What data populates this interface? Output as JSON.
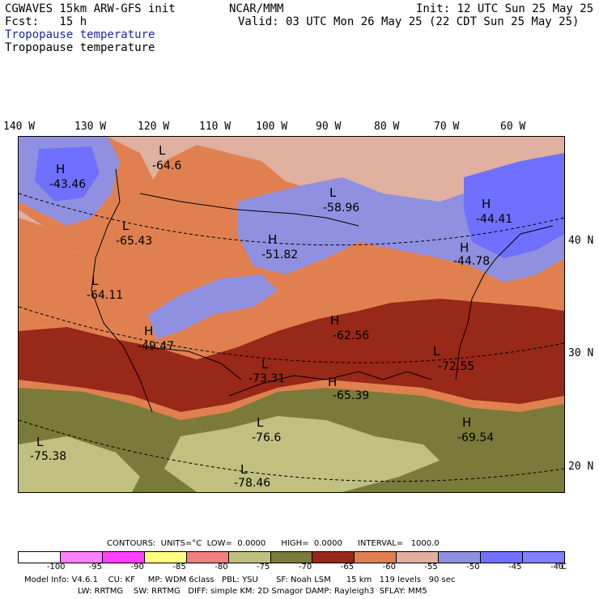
{
  "header": {
    "left_line1": "CGWAVES 15km ARW-GFS init",
    "left_line2": "Fcst:   15 h",
    "center": "NCAR/MMM",
    "right_line1": "Init: 12 UTC Sun 25 May 25",
    "right_line2": "Valid: 03 UTC Mon 26 May 25 (22 CDT Sun 25 May 25)",
    "title_blue": "Tropopause temperature",
    "title_black": "Tropopause temperature"
  },
  "lon_labels": [
    "140 W",
    "130 W",
    "120 W",
    "110 W",
    "100 W",
    "90 W",
    "80 W",
    "70 W",
    "60 W"
  ],
  "lat_labels": [
    "40 N",
    "30 N",
    "20 N"
  ],
  "features": [
    {
      "type": "H",
      "value": "-43.46"
    },
    {
      "type": "L",
      "value": "-64.6"
    },
    {
      "type": "L",
      "value": "-58.96"
    },
    {
      "type": "H",
      "value": "-44.41"
    },
    {
      "type": "L",
      "value": "-65.43"
    },
    {
      "type": "H",
      "value": "-51.82"
    },
    {
      "type": "H",
      "value": "-44.78"
    },
    {
      "type": "L",
      "value": "-64.11"
    },
    {
      "type": "H",
      "value": "-49.47"
    },
    {
      "type": "H",
      "value": "-62.56"
    },
    {
      "type": "L",
      "value": "-73.31"
    },
    {
      "type": "L",
      "value": "-72.55"
    },
    {
      "type": "H",
      "value": "-65.39"
    },
    {
      "type": "H",
      "value": "-69.54"
    },
    {
      "type": "L",
      "value": "-76.6"
    },
    {
      "type": "L",
      "value": "-75.38"
    },
    {
      "type": "L",
      "value": "-78.46"
    }
  ],
  "contours": {
    "text": "CONTOURS:  UNITS=°C  LOW=  0.0000      HIGH=  0.0000      INTERVAL=   1000.0"
  },
  "colorbar": {
    "ticks": [
      "-100",
      "-95",
      "-90",
      "-85",
      "-80",
      "-75",
      "-70",
      "-65",
      "-60",
      "-55",
      "-50",
      "-45",
      "-40"
    ],
    "unit": "°C",
    "colors": [
      "#ffffff",
      "#ff80ff",
      "#ff40ff",
      "#ffff80",
      "#f08080",
      "#c0c080",
      "#7a7a3a",
      "#982818",
      "#e08050",
      "#e0b0a0",
      "#9090e0",
      "#7070ff",
      "#8080ff"
    ]
  },
  "model_info": {
    "line1": "Model Info: V4.6.1    CU: KF     MP: WDM 6class   PBL: YSU       SF: Noah LSM      15 km   119 levels   90 sec",
    "line2": "LW: RRTMG    SW: RRTMG   DIFF: simple KM: 2D Smagor DAMP: Rayleigh3  SFLAY: MM5"
  }
}
